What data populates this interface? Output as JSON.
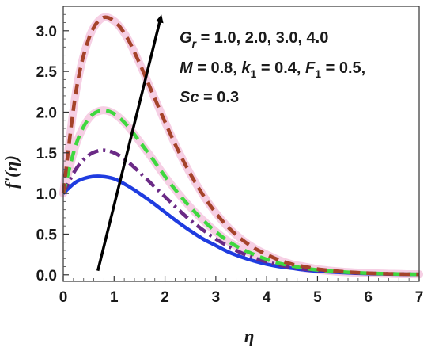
{
  "chart_data": {
    "type": "line",
    "xlabel": "η",
    "ylabel": "f'(η)",
    "xlim": [
      0,
      7
    ],
    "ylim": [
      -0.08,
      3.3
    ],
    "xticks": [
      0,
      1,
      2,
      3,
      4,
      5,
      6,
      7
    ],
    "yticks": [
      0.0,
      0.5,
      1.0,
      1.5,
      2.0,
      2.5,
      3.0
    ],
    "ytick_labels": [
      "0.0",
      "0.5",
      "1.0",
      "1.5",
      "2.0",
      "2.5",
      "3.0"
    ],
    "grid": false,
    "x": [
      0,
      0.25,
      0.5,
      0.75,
      1,
      1.25,
      1.5,
      1.75,
      2,
      2.25,
      2.5,
      2.75,
      3,
      3.25,
      3.5,
      3.75,
      4,
      4.25,
      4.5,
      4.75,
      5,
      5.25,
      5.5,
      5.75,
      6,
      6.25,
      6.5,
      6.75,
      7
    ],
    "series": [
      {
        "color": "#1f3ce0",
        "dash": "solid",
        "halo": false,
        "values": [
          1.0,
          1.14,
          1.2,
          1.21,
          1.18,
          1.1,
          1.0,
          0.89,
          0.77,
          0.65,
          0.54,
          0.44,
          0.36,
          0.28,
          0.22,
          0.17,
          0.13,
          0.1,
          0.08,
          0.06,
          0.045,
          0.035,
          0.027,
          0.02,
          0.015,
          0.012,
          0.009,
          0.007,
          0.005
        ]
      },
      {
        "color": "#6b2a86",
        "dash": "dashdot",
        "halo": false,
        "values": [
          1.0,
          1.3,
          1.47,
          1.53,
          1.5,
          1.4,
          1.26,
          1.11,
          0.96,
          0.81,
          0.67,
          0.55,
          0.44,
          0.35,
          0.27,
          0.21,
          0.16,
          0.12,
          0.09,
          0.07,
          0.055,
          0.042,
          0.032,
          0.024,
          0.018,
          0.014,
          0.011,
          0.008,
          0.006
        ]
      },
      {
        "color": "#3fd83f",
        "dash": "dashed",
        "halo": true,
        "values": [
          1.0,
          1.6,
          1.92,
          2.02,
          1.98,
          1.84,
          1.64,
          1.43,
          1.21,
          1.01,
          0.83,
          0.67,
          0.53,
          0.41,
          0.32,
          0.25,
          0.19,
          0.14,
          0.11,
          0.08,
          0.06,
          0.045,
          0.034,
          0.026,
          0.02,
          0.015,
          0.011,
          0.008,
          0.006
        ]
      },
      {
        "color": "#a5432a",
        "dash": "dashed",
        "halo": true,
        "values": [
          1.0,
          2.25,
          2.9,
          3.15,
          3.12,
          2.92,
          2.6,
          2.24,
          1.88,
          1.54,
          1.24,
          0.98,
          0.76,
          0.58,
          0.44,
          0.33,
          0.25,
          0.18,
          0.13,
          0.1,
          0.07,
          0.052,
          0.038,
          0.028,
          0.02,
          0.015,
          0.011,
          0.008,
          0.006
        ]
      }
    ],
    "annotation": {
      "line1": "G_r = 1.0, 2.0, 3.0, 4.0",
      "line2": "M = 0.8, k_1 = 0.4, F_1 = 0.5,",
      "line3": "Sc = 0.3"
    },
    "arrow": {
      "from": [
        0.68,
        0.05
      ],
      "to": [
        1.92,
        3.17
      ]
    }
  }
}
